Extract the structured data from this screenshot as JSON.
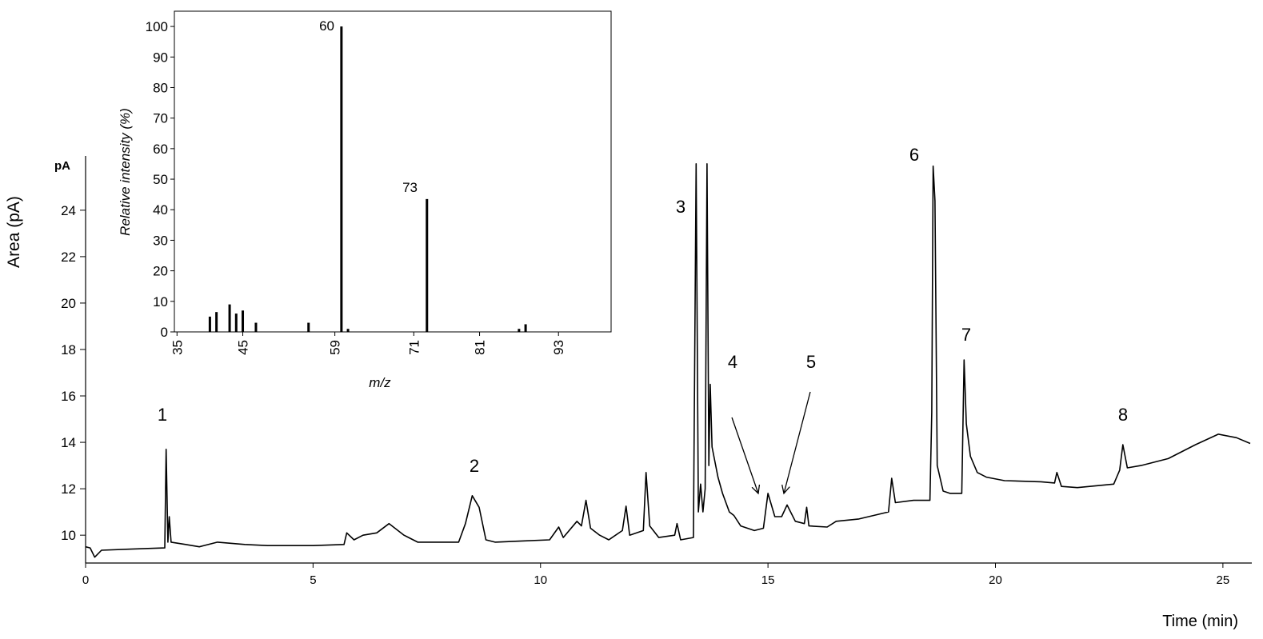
{
  "chart_data": [
    {
      "type": "line",
      "ylabel": "Area (pA)",
      "xlabel": "Time (min)",
      "yunit": "pA",
      "color": "#000000",
      "x": [
        0,
        0.1,
        0.2,
        0.35,
        1.0,
        1.74,
        1.77,
        1.81,
        1.84,
        1.88,
        2.2,
        2.5,
        2.9,
        3.5,
        4.0,
        5.0,
        5.68,
        5.74,
        5.9,
        6.1,
        6.4,
        6.67,
        7.0,
        7.3,
        8.2,
        8.35,
        8.5,
        8.65,
        8.8,
        9.0,
        9.6,
        10.2,
        10.4,
        10.5,
        10.8,
        10.9,
        11.0,
        11.1,
        11.3,
        11.5,
        11.8,
        11.88,
        11.96,
        12.26,
        12.32,
        12.4,
        12.6,
        12.95,
        13.0,
        13.08,
        13.36,
        13.42,
        13.47,
        13.52,
        13.57,
        13.62,
        13.66,
        13.7,
        13.73,
        13.77,
        13.9,
        14.0,
        14.15,
        14.25,
        14.4,
        14.7,
        14.9,
        15.0,
        15.15,
        15.3,
        15.42,
        15.6,
        15.8,
        15.85,
        15.9,
        16.3,
        16.5,
        17.0,
        17.65,
        17.72,
        17.8,
        18.2,
        18.56,
        18.6,
        18.63,
        18.67,
        18.72,
        18.85,
        19.0,
        19.26,
        19.31,
        19.36,
        19.45,
        19.6,
        19.8,
        20.2,
        21.0,
        21.3,
        21.35,
        21.45,
        21.8,
        22.6,
        22.73,
        22.8,
        22.9,
        23.2,
        23.8,
        24.4,
        24.9,
        25.3,
        25.6
      ],
      "values": [
        9.5,
        9.45,
        9.05,
        9.35,
        9.4,
        9.45,
        13.7,
        9.7,
        10.8,
        9.7,
        9.6,
        9.5,
        9.7,
        9.6,
        9.55,
        9.55,
        9.6,
        10.1,
        9.8,
        10.0,
        10.1,
        10.5,
        10.0,
        9.7,
        9.7,
        10.5,
        11.7,
        11.2,
        9.8,
        9.7,
        9.75,
        9.8,
        10.35,
        9.9,
        10.6,
        10.4,
        11.5,
        10.3,
        10.0,
        9.8,
        10.2,
        11.25,
        10.0,
        10.2,
        12.7,
        10.4,
        9.9,
        10.0,
        10.5,
        9.8,
        9.9,
        26.0,
        11.0,
        12.2,
        11.0,
        12.0,
        26.0,
        13.0,
        16.5,
        13.8,
        12.5,
        11.8,
        11.0,
        10.85,
        10.4,
        10.2,
        10.3,
        11.8,
        10.8,
        10.8,
        11.3,
        10.6,
        10.5,
        11.2,
        10.4,
        10.35,
        10.6,
        10.7,
        11.0,
        12.45,
        11.4,
        11.5,
        11.5,
        15.3,
        25.9,
        24.4,
        13.0,
        11.9,
        11.8,
        11.8,
        17.55,
        14.8,
        13.4,
        12.7,
        12.5,
        12.35,
        12.3,
        12.25,
        12.7,
        12.1,
        12.05,
        12.2,
        12.8,
        13.9,
        12.9,
        13.0,
        13.3,
        13.9,
        14.35,
        14.2,
        13.95
      ],
      "xlim": [
        0,
        25.6
      ],
      "xticks": [
        0,
        5,
        10,
        15,
        20,
        25
      ],
      "ylim": [
        8.8,
        26.2
      ],
      "yticks": [
        10,
        12,
        14,
        16,
        18,
        20,
        22,
        24
      ],
      "annotations": [
        "1",
        "2",
        "3",
        "4",
        "5",
        "6",
        "7",
        "8"
      ]
    },
    {
      "type": "bar",
      "ylabel": "Relative intensity (%)",
      "xlabel": "m/z",
      "color": "#000000",
      "x": [
        40,
        41,
        43,
        44,
        45,
        47,
        55,
        60,
        61,
        73,
        87,
        88
      ],
      "values": [
        5,
        6.5,
        9,
        6,
        7,
        3,
        3,
        100,
        1,
        43.5,
        1,
        2.5
      ],
      "xlim": [
        34.6,
        101
      ],
      "xticks": [
        35,
        45,
        59,
        71,
        81,
        93
      ],
      "ylim": [
        0,
        105
      ],
      "yticks": [
        0,
        10,
        20,
        30,
        40,
        50,
        60,
        70,
        80,
        90,
        100
      ],
      "annotations": [
        "60",
        "73"
      ]
    }
  ]
}
